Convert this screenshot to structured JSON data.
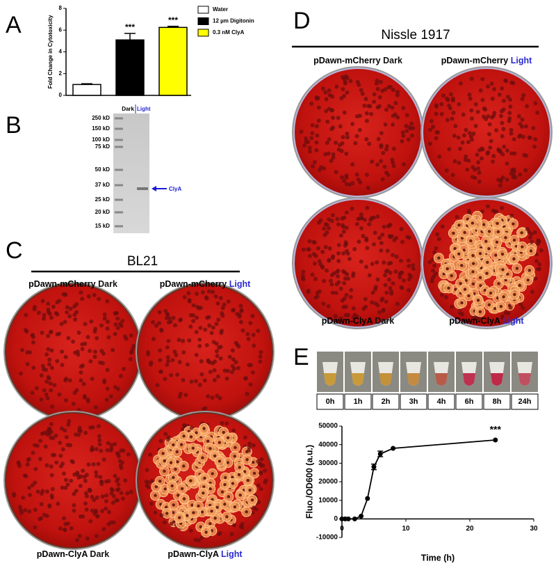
{
  "panels": {
    "a": "A",
    "b": "B",
    "c": "C",
    "d": "D",
    "e": "E"
  },
  "chart_data": [
    {
      "type": "bar",
      "ylabel": "Fold Change in Cytotoxicity",
      "categories": [
        null
      ],
      "series": [
        {
          "name": "Water",
          "color": "#ffffff",
          "values": [
            1.0
          ],
          "errors": [
            0.07
          ]
        },
        {
          "name": "12 µm Digitonin",
          "color": "#000000",
          "values": [
            5.1
          ],
          "errors": [
            0.6
          ],
          "label": "***"
        },
        {
          "name": "0.3 nM ClyA",
          "color": "#ffff00",
          "values": [
            6.25
          ],
          "errors": [
            0.1
          ],
          "label": "***"
        }
      ],
      "ylim": [
        0,
        8
      ],
      "yticks": [
        0,
        2,
        4,
        6,
        8
      ],
      "legend": "upper right"
    },
    {
      "type": "line",
      "xlabel": "Time (h)",
      "ylabel": "Fluo./OD600  (a.u.)",
      "color": "#000000",
      "x": [
        0,
        0.5,
        1,
        2,
        3,
        4,
        5,
        6,
        8,
        24
      ],
      "values": [
        0,
        0,
        0,
        0,
        1500,
        11000,
        28000,
        35000,
        38000,
        42500
      ],
      "errors": [
        null,
        null,
        null,
        null,
        null,
        null,
        1500,
        1500,
        null,
        null
      ],
      "annotation": "***",
      "xlim": [
        0,
        30
      ],
      "xticks": [
        0,
        10,
        20,
        30
      ],
      "ylim": [
        -10000,
        50000
      ],
      "yticks": [
        -10000,
        0,
        10000,
        20000,
        30000,
        40000,
        50000
      ]
    }
  ],
  "gel": {
    "lanes": [
      "Dark",
      "Light"
    ],
    "markers": [
      "250 kD",
      "150 kD",
      "100 kD",
      "75 kD",
      "50 kD",
      "37 kD",
      "25 kD",
      "20 kD",
      "15 kD"
    ],
    "band_label": "ClyA"
  },
  "bl21": {
    "title": "BL21",
    "plates": [
      {
        "strain": "pDawn-mCherry",
        "condition": "Dark",
        "color": "#111111"
      },
      {
        "strain": "pDawn-mCherry",
        "condition": "Light",
        "color": "#2a2ad0"
      },
      {
        "strain": "pDawn-ClyA",
        "condition": "Dark",
        "color": "#111111"
      },
      {
        "strain": "pDawn-ClyA",
        "condition": "Light",
        "color": "#2a2ad0"
      }
    ]
  },
  "nissle": {
    "title": "Nissle 1917",
    "plates": [
      {
        "strain": "pDawn-mCherry",
        "condition": "Dark",
        "color": "#111111"
      },
      {
        "strain": "pDawn-mCherry",
        "condition": "Light",
        "color": "#2a2ad0"
      },
      {
        "strain": "pDawn-ClyA",
        "condition": "Dark",
        "color": "#111111"
      },
      {
        "strain": "pDawn-ClyA",
        "condition": "Light",
        "color": "#2a2ad0"
      }
    ]
  },
  "time_strip": [
    "0h",
    "1h",
    "2h",
    "3h",
    "4h",
    "6h",
    "8h",
    "24h"
  ]
}
